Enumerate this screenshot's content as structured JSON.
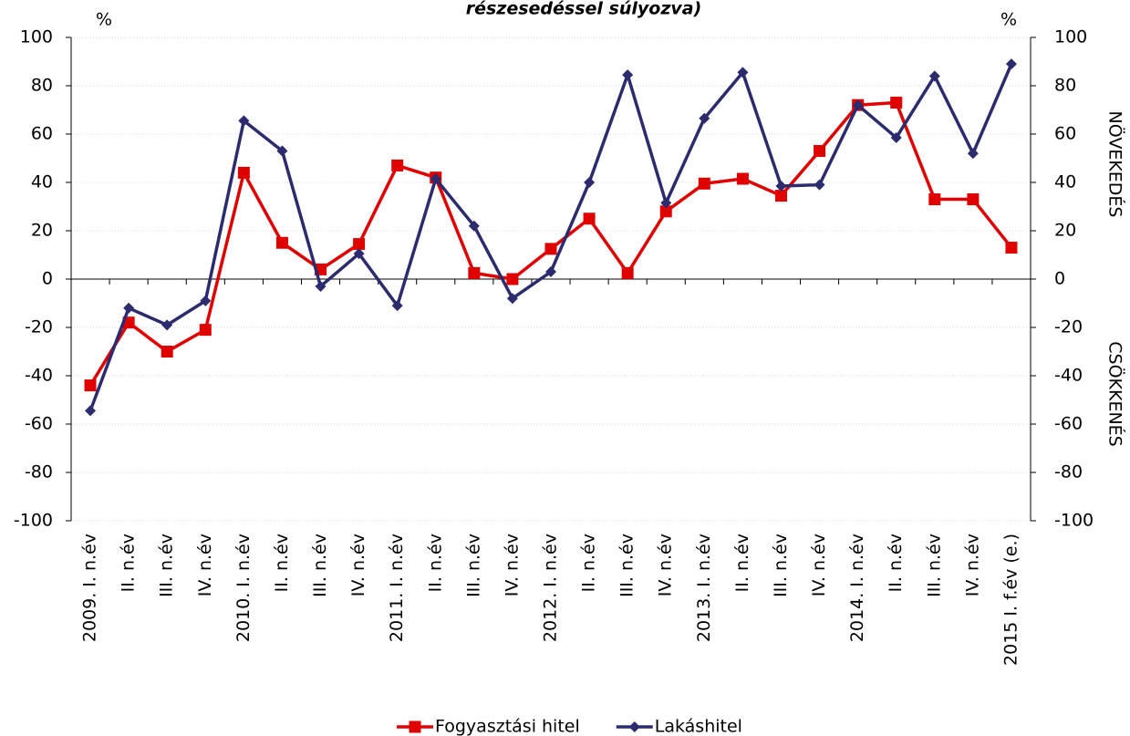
{
  "chart_data": {
    "type": "line",
    "title": "részesedéssel súlyozva)",
    "y_unit": "%",
    "y2_unit": "%",
    "y2_upper_label": "NÖVEKEDÉS",
    "y2_lower_label": "CSÖKKENÉS",
    "categories": [
      "2009. I. n.év",
      "II. n.év",
      "III. n.év",
      "IV. n.év",
      "2010. I. n.év",
      "II. n.év",
      "III. n.év",
      "IV. n.év",
      "2011. I. n.év",
      "II. n.év",
      "III. n.év",
      "IV. n.év",
      "2012. I. n.év",
      "II. n.év",
      "III. n.év",
      "IV. n.év",
      "2013. I. n.év",
      "II. n.év",
      "III. n.év",
      "IV. n.év",
      "2014. I. n.év",
      "II. n.év",
      "III. n.év",
      "IV. n.év",
      "2015 I. f.év (e.)"
    ],
    "series": [
      {
        "name": "Fogyasztási hitel",
        "color": "#e00000",
        "marker": "square",
        "values": [
          -44,
          -18,
          -30,
          -21,
          44,
          15,
          4,
          14.5,
          47,
          42,
          2.5,
          0,
          12.5,
          25,
          2.5,
          28,
          39.5,
          41.5,
          34.5,
          53,
          72,
          73,
          33,
          33,
          13
        ]
      },
      {
        "name": "Lakáshitel",
        "color": "#2b2b6e",
        "marker": "diamond",
        "values": [
          -54.5,
          -12,
          -19,
          -9,
          65.5,
          53,
          -3,
          10.5,
          -11,
          41.5,
          22,
          -8,
          3,
          40,
          84.5,
          31.5,
          66.5,
          85.5,
          38.5,
          39,
          72,
          58.5,
          84,
          52,
          89
        ]
      }
    ],
    "ylim": [
      -100,
      100
    ],
    "yticks": [
      -100,
      -80,
      -60,
      -40,
      -20,
      0,
      20,
      40,
      60,
      80,
      100
    ],
    "y2lim": [
      -100,
      100
    ],
    "y2ticks": [
      -100,
      -80,
      -60,
      -40,
      -20,
      0,
      20,
      40,
      60,
      80,
      100
    ],
    "grid": true,
    "legend": "bottom"
  }
}
